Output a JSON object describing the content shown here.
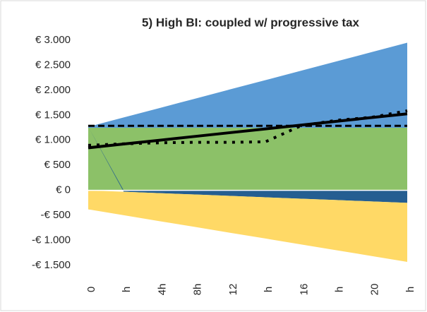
{
  "chart_data": {
    "type": "area",
    "title": "5) High BI: coupled w/ progressive tax",
    "categories": [
      "0",
      "h",
      "4h",
      "8h",
      "12",
      "h",
      "16",
      "h",
      "20",
      "h"
    ],
    "ylim": [
      -1500,
      3000
    ],
    "yticks": [
      {
        "value": -1500,
        "label": "-€ 1.500"
      },
      {
        "value": -1000,
        "label": "-€ 1.000"
      },
      {
        "value": -500,
        "label": "-€ 500"
      },
      {
        "value": 0,
        "label": "€ 0"
      },
      {
        "value": 500,
        "label": "€ 500"
      },
      {
        "value": 1000,
        "label": "€ 1.000"
      },
      {
        "value": 1500,
        "label": "€ 1.500"
      },
      {
        "value": 2000,
        "label": "€ 2.000"
      },
      {
        "value": 2500,
        "label": "€ 2.500"
      },
      {
        "value": 3000,
        "label": "€ 3.000"
      }
    ],
    "grid": false,
    "series": [
      {
        "type": "area",
        "color": "#8cc168",
        "values": [
          1250,
          1250,
          1250,
          1250,
          1250,
          1250,
          1250,
          1250,
          1250,
          1250
        ]
      },
      {
        "type": "area",
        "color": "#5b9bd5",
        "values": [
          20,
          207,
          393,
          580,
          767,
          953,
          1140,
          1327,
          1513,
          1700
        ]
      },
      {
        "type": "area",
        "color": "#255e91",
        "values": [
          0,
          -28,
          -56,
          -83,
          -111,
          -139,
          -167,
          -194,
          -222,
          -250
        ]
      },
      {
        "type": "area",
        "color": "#ffd966",
        "values": [
          -380,
          -469,
          -558,
          -647,
          -736,
          -824,
          -913,
          -1002,
          -1091,
          -1180
        ]
      },
      {
        "type": "line",
        "style": "dashed",
        "color": "#000000",
        "values": [
          1290,
          1290,
          1290,
          1290,
          1290,
          1290,
          1290,
          1290,
          1290,
          1290
        ]
      },
      {
        "type": "line",
        "style": "solid",
        "color": "#000000",
        "values": [
          850,
          926,
          1001,
          1077,
          1153,
          1228,
          1304,
          1379,
          1455,
          1530
        ]
      },
      {
        "type": "line",
        "style": "dotted",
        "color": "#000000",
        "values": [
          900,
          930,
          950,
          960,
          960,
          970,
          1290,
          1400,
          1460,
          1590
        ]
      }
    ]
  }
}
